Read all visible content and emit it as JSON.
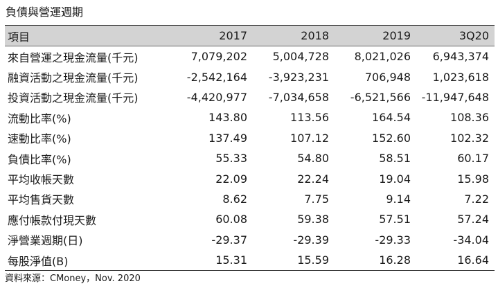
{
  "title": "負債與營運週期",
  "table": {
    "header": [
      "項目",
      "2017",
      "2018",
      "2019",
      "3Q20"
    ],
    "rows": [
      {
        "label": "來自營運之現金流量(千元)",
        "values": [
          "7,079,202",
          "5,004,728",
          "8,021,026",
          "6,943,374"
        ]
      },
      {
        "label": "融資活動之現金流量(千元)",
        "values": [
          "-2,542,164",
          "-3,923,231",
          "706,948",
          "1,023,618"
        ]
      },
      {
        "label": "投資活動之現金流量(千元)",
        "values": [
          "-4,420,977",
          "-7,034,658",
          "-6,521,566",
          "-11,947,648"
        ]
      },
      {
        "label": "流動比率(%)",
        "values": [
          "143.80",
          "113.56",
          "164.54",
          "108.36"
        ]
      },
      {
        "label": "速動比率(%)",
        "values": [
          "137.49",
          "107.12",
          "152.60",
          "102.32"
        ]
      },
      {
        "label": "負債比率(%)",
        "values": [
          "55.33",
          "54.80",
          "58.51",
          "60.17"
        ]
      },
      {
        "label": "平均收帳天數",
        "values": [
          "22.09",
          "22.24",
          "19.04",
          "15.98"
        ]
      },
      {
        "label": "平均售貨天數",
        "values": [
          "8.62",
          "7.75",
          "9.14",
          "7.22"
        ]
      },
      {
        "label": "應付帳款付現天數",
        "values": [
          "60.08",
          "59.38",
          "57.51",
          "57.24"
        ]
      },
      {
        "label": "淨營業週期(日)",
        "values": [
          "-29.37",
          "-29.39",
          "-29.33",
          "-34.04"
        ]
      },
      {
        "label": "每股淨值(B)",
        "values": [
          "15.31",
          "15.59",
          "16.28",
          "16.64"
        ]
      }
    ]
  },
  "source": "資料來源：CMoney，Nov. 2020"
}
